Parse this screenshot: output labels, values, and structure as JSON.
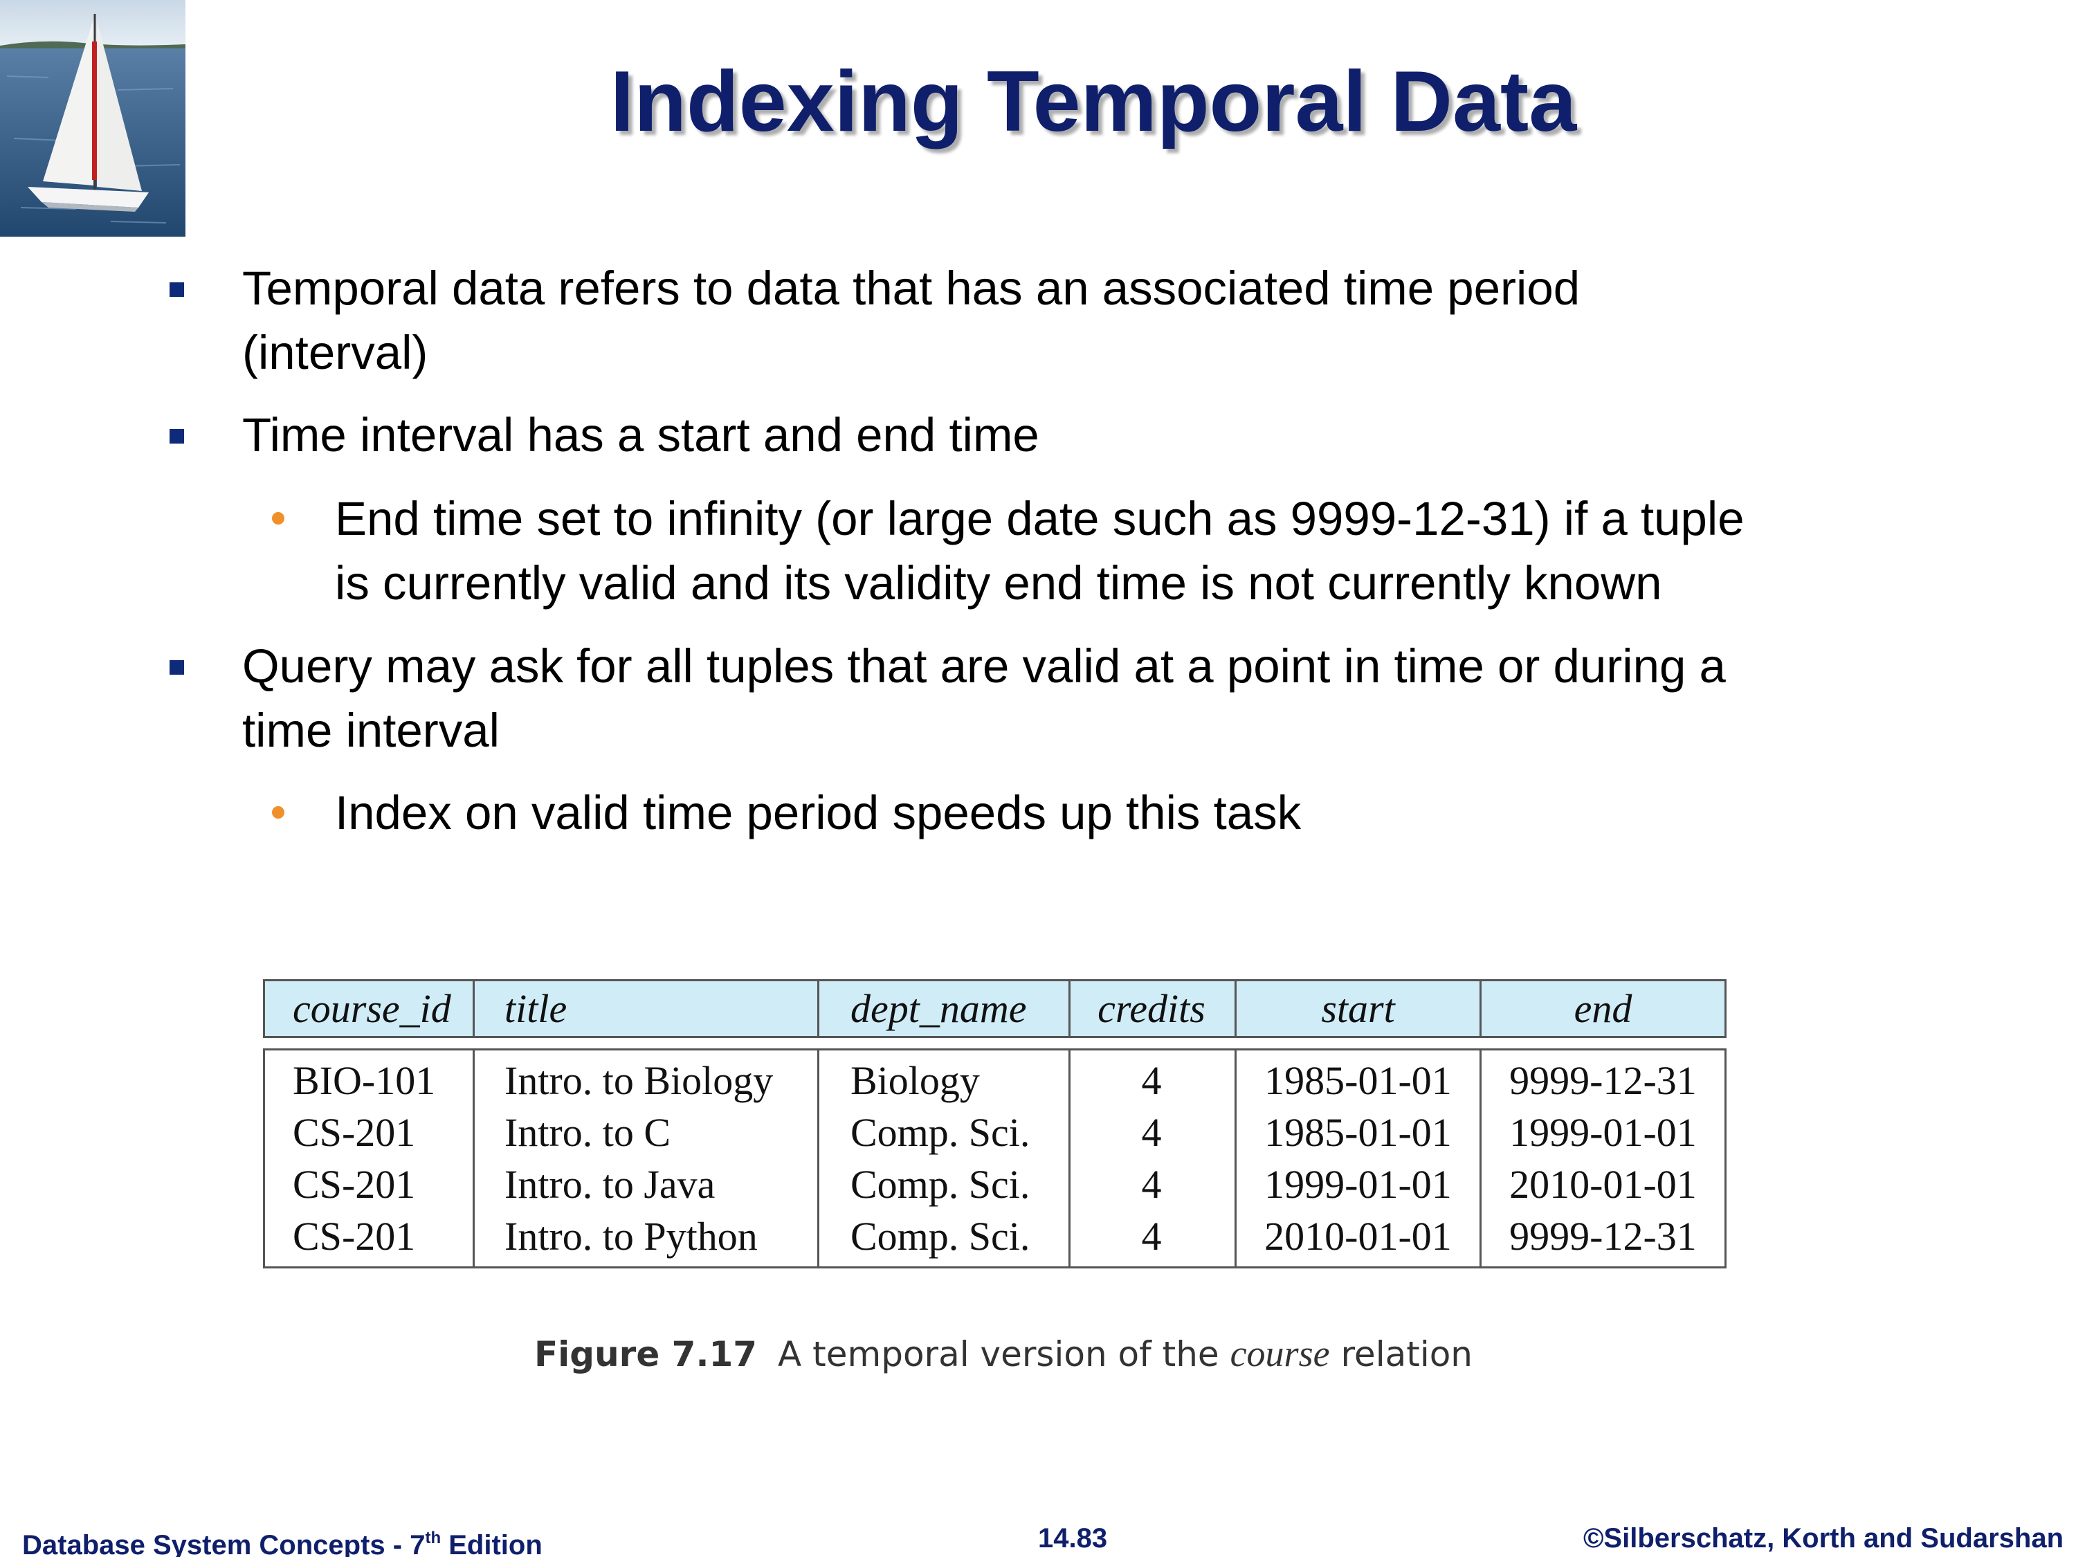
{
  "slide": {
    "title": "Indexing Temporal Data",
    "bullets": [
      {
        "level": 1,
        "lines": [
          "Temporal data refers to data that has an associated time period",
          "(interval)"
        ]
      },
      {
        "level": 1,
        "lines": [
          "Time interval has a start and end time"
        ]
      },
      {
        "level": 2,
        "lines": [
          "End time set to infinity (or large date such as 9999-12-31) if a tuple",
          "is currently valid and its validity end time is not currently known"
        ]
      },
      {
        "level": 1,
        "lines": [
          "Query may ask for all tuples that are valid at a point in time or during a",
          "time interval"
        ]
      },
      {
        "level": 2,
        "lines": [
          "Index on valid time period speeds up this task"
        ]
      }
    ],
    "colors": {
      "title": "#0f1f6b",
      "square_bullet": "#102a7a",
      "round_bullet": "#f0902b",
      "table_header": "#d0ecf7"
    }
  },
  "table": {
    "headers": [
      "course_id",
      "title",
      "dept_name",
      "credits",
      "start",
      "end"
    ],
    "rows": [
      [
        "BIO-101",
        "Intro. to Biology",
        "Biology",
        "4",
        "1985-01-01",
        "9999-12-31"
      ],
      [
        "CS-201",
        "Intro. to C",
        "Comp. Sci.",
        "4",
        "1985-01-01",
        "1999-01-01"
      ],
      [
        "CS-201",
        "Intro. to Java",
        "Comp. Sci.",
        "4",
        "1999-01-01",
        "2010-01-01"
      ],
      [
        "CS-201",
        "Intro. to Python",
        "Comp. Sci.",
        "4",
        "2010-01-01",
        "9999-12-31"
      ]
    ]
  },
  "caption": {
    "figure": "Figure 7.17",
    "text_before": "A temporal version of the",
    "emphasis": "course",
    "text_after": "relation"
  },
  "footer": {
    "left": "Database System Concepts - 7",
    "left_sup": "th",
    "left_after": " Edition",
    "center": "14.83",
    "right": "©Silberschatz, Korth and Sudarshan"
  }
}
